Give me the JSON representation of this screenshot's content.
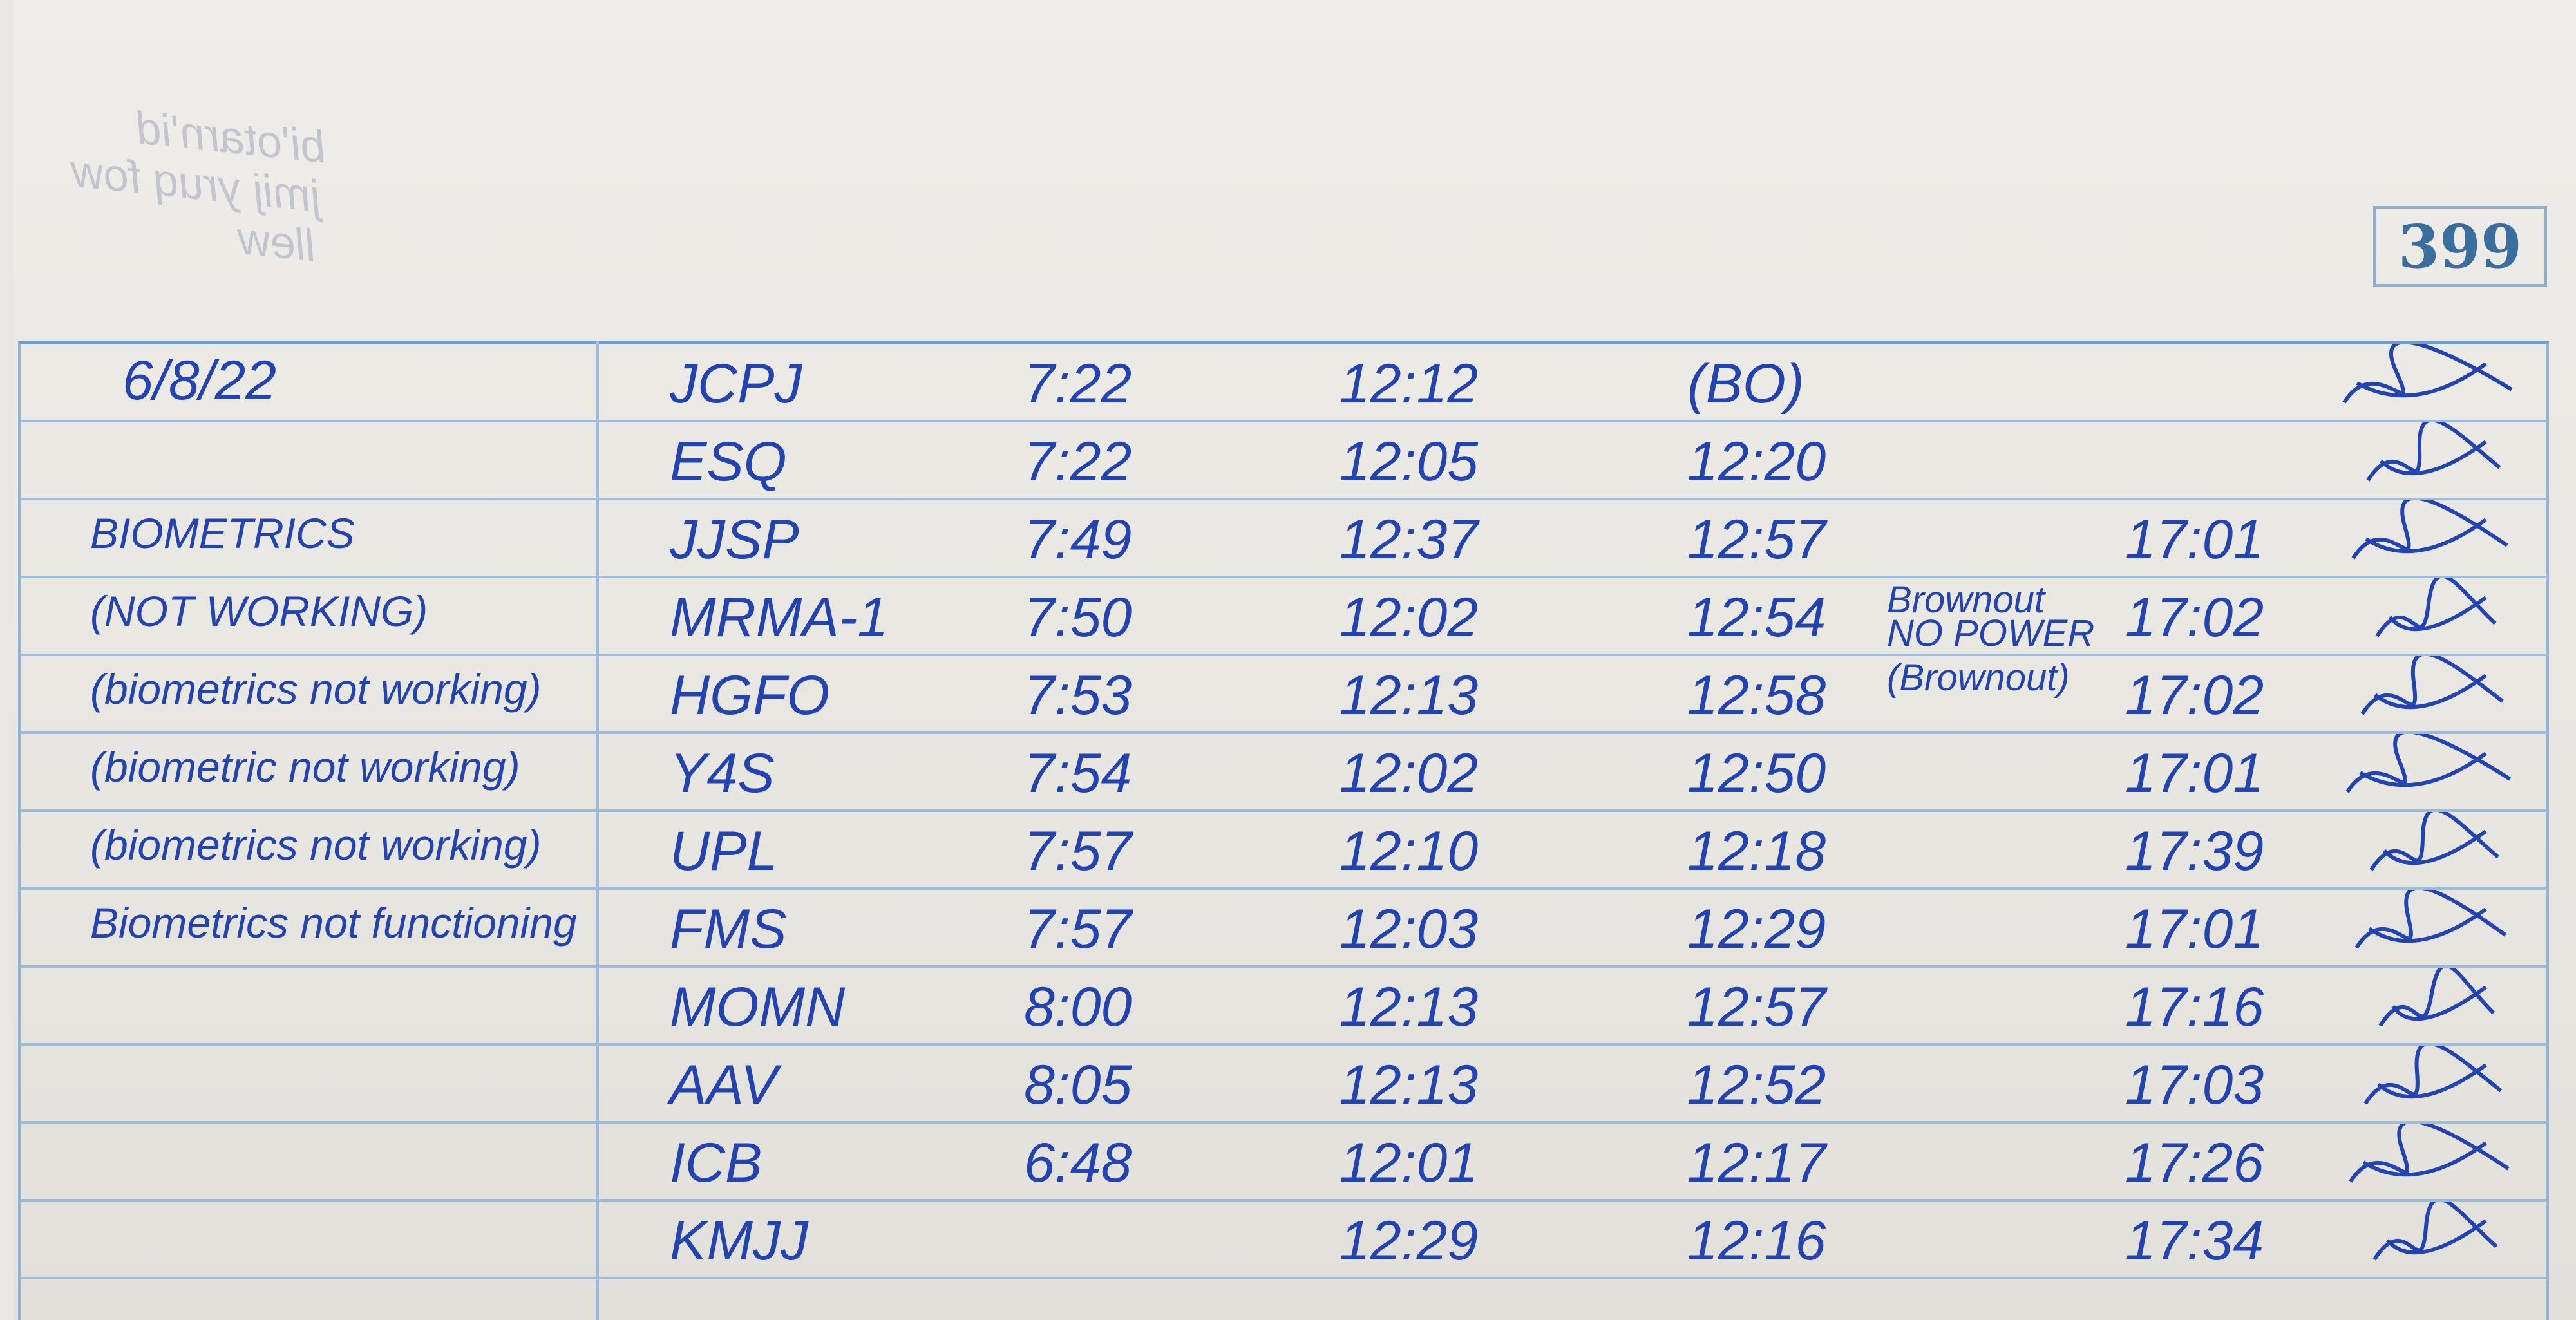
{
  "page_number": "399",
  "ghost_text": [
    "bi'otarn'id",
    "jmij yruq fow",
    "llew"
  ],
  "ink_color": "#2344b0",
  "rule_color": "#9dbbdc",
  "date": "6/8/22",
  "rows": [
    {
      "remark": "",
      "name": "JCPJ",
      "in": "7:22",
      "out_am": "12:12",
      "in_pm": "(BO)",
      "note": "",
      "out_pm": ""
    },
    {
      "remark": "",
      "name": "ESQ",
      "in": "7:22",
      "out_am": "12:05",
      "in_pm": "12:20",
      "note": "",
      "out_pm": ""
    },
    {
      "remark": "BIOMETRICS",
      "name": "JJSP",
      "in": "7:49",
      "out_am": "12:37",
      "in_pm": "12:57",
      "note": "",
      "out_pm": "17:01"
    },
    {
      "remark": "(NOT WORKING)",
      "name": "MRMA-1",
      "in": "7:50",
      "out_am": "12:02",
      "in_pm": "12:54",
      "note": "Brownout NO POWER",
      "out_pm": "17:02"
    },
    {
      "remark": "(biometrics not working)",
      "name": "HGFO",
      "in": "7:53",
      "out_am": "12:13",
      "in_pm": "12:58",
      "note": "(Brownout)",
      "out_pm": "17:02"
    },
    {
      "remark": "(biometric not working)",
      "name": "Y4S",
      "in": "7:54",
      "out_am": "12:02",
      "in_pm": "12:50",
      "note": "",
      "out_pm": "17:01"
    },
    {
      "remark": "(biometrics not working)",
      "name": "UPL",
      "in": "7:57",
      "out_am": "12:10",
      "in_pm": "12:18",
      "note": "",
      "out_pm": "17:39"
    },
    {
      "remark": "Biometrics not functioning",
      "name": "FMS",
      "in": "7:57",
      "out_am": "12:03",
      "in_pm": "12:29",
      "note": "",
      "out_pm": "17:01"
    },
    {
      "remark": "",
      "name": "MOMN",
      "in": "8:00",
      "out_am": "12:13",
      "in_pm": "12:57",
      "note": "",
      "out_pm": "17:16"
    },
    {
      "remark": "",
      "name": "AAV",
      "in": "8:05",
      "out_am": "12:13",
      "in_pm": "12:52",
      "note": "",
      "out_pm": "17:03"
    },
    {
      "remark": "",
      "name": "ICB",
      "in": "6:48",
      "out_am": "12:01",
      "in_pm": "12:17",
      "note": "",
      "out_pm": "17:26"
    },
    {
      "remark": "",
      "name": "KMJJ",
      "in": "",
      "out_am": "12:29",
      "in_pm": "12:16",
      "note": "",
      "out_pm": "17:34"
    }
  ]
}
